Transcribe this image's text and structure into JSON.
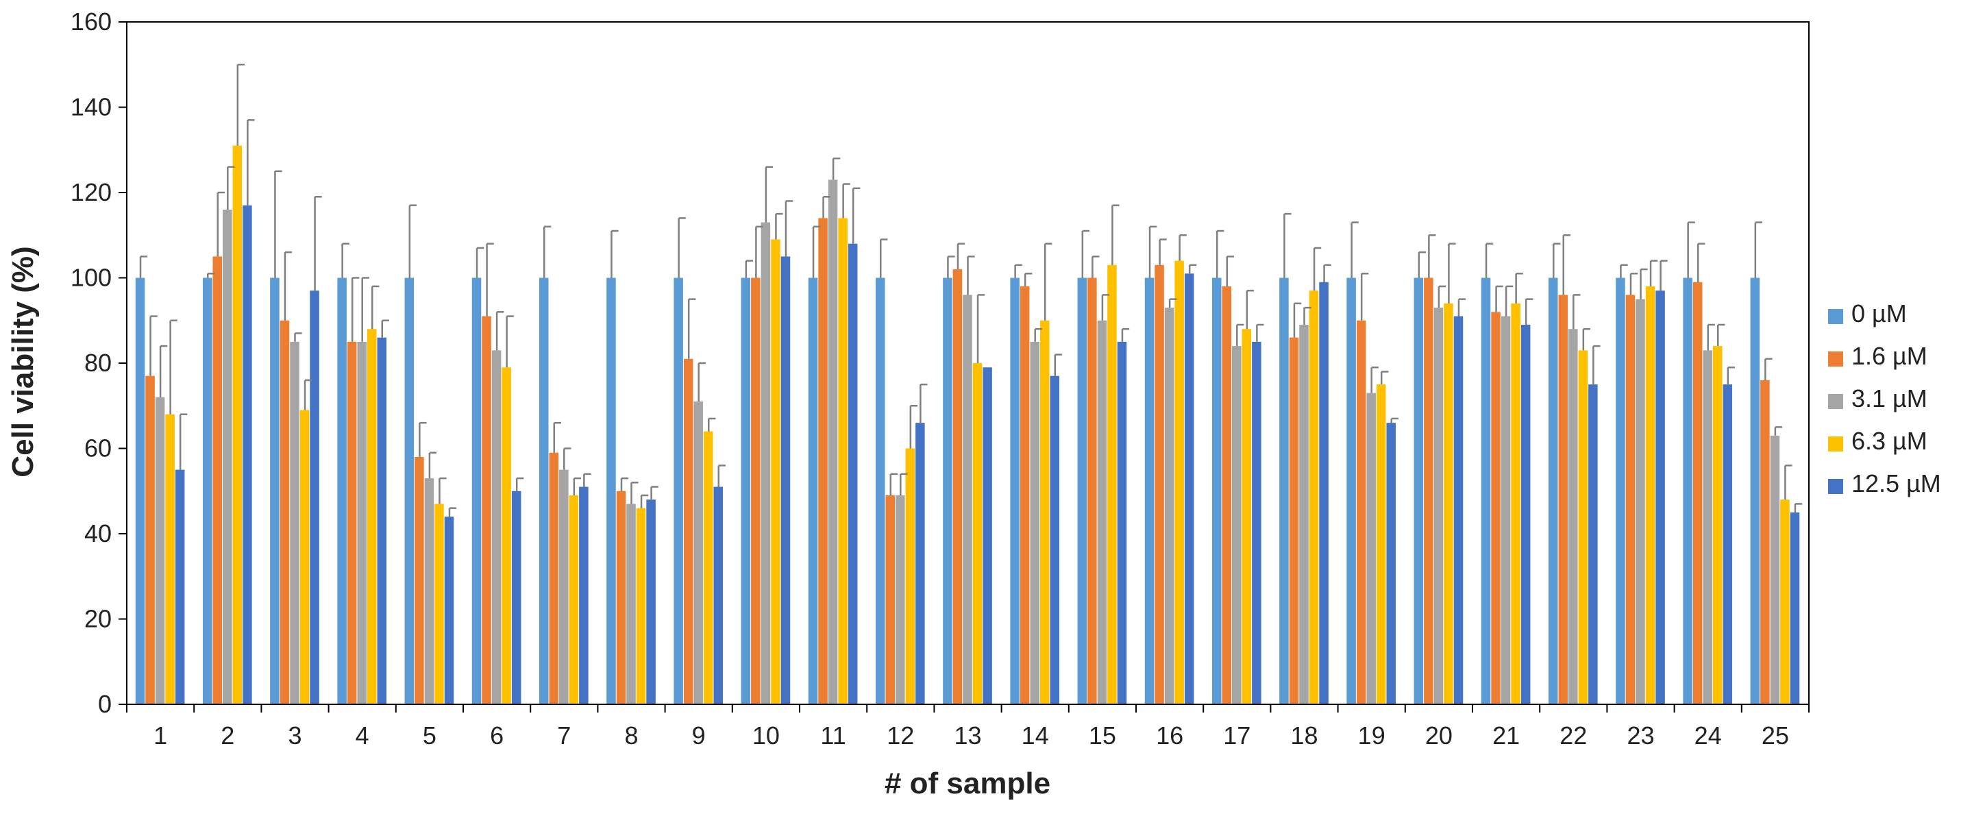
{
  "chart_data": {
    "type": "bar",
    "title": "",
    "xlabel": "# of sample",
    "ylabel": "Cell viability (%)",
    "ylim": [
      0,
      160
    ],
    "yticks": [
      0,
      20,
      40,
      60,
      80,
      100,
      120,
      140,
      160
    ],
    "categories": [
      "1",
      "2",
      "3",
      "4",
      "5",
      "6",
      "7",
      "8",
      "9",
      "10",
      "11",
      "12",
      "13",
      "14",
      "15",
      "16",
      "17",
      "18",
      "19",
      "20",
      "21",
      "22",
      "23",
      "24",
      "25"
    ],
    "legend_position": "right",
    "series": [
      {
        "name": "0 µM",
        "color": "#5B9BD5",
        "values": [
          100,
          100,
          100,
          100,
          100,
          100,
          100,
          100,
          100,
          100,
          100,
          100,
          100,
          100,
          100,
          100,
          100,
          100,
          100,
          100,
          100,
          100,
          100,
          100,
          100
        ],
        "errors": [
          5,
          1,
          25,
          8,
          17,
          7,
          12,
          11,
          14,
          4,
          12,
          9,
          5,
          3,
          11,
          12,
          11,
          15,
          13,
          6,
          8,
          8,
          3,
          13,
          13
        ]
      },
      {
        "name": "1.6 µM",
        "color": "#ED7D31",
        "values": [
          77,
          105,
          90,
          85,
          58,
          91,
          59,
          50,
          81,
          100,
          114,
          49,
          102,
          98,
          100,
          103,
          98,
          86,
          90,
          100,
          92,
          96,
          96,
          99,
          76
        ],
        "errors": [
          14,
          15,
          16,
          15,
          8,
          17,
          7,
          3,
          14,
          12,
          5,
          5,
          6,
          3,
          5,
          6,
          7,
          8,
          11,
          10,
          6,
          14,
          5,
          9,
          5
        ]
      },
      {
        "name": "3.1 µM",
        "color": "#A5A5A5",
        "values": [
          72,
          116,
          85,
          85,
          53,
          83,
          55,
          47,
          71,
          113,
          123,
          49,
          96,
          85,
          90,
          93,
          84,
          89,
          73,
          93,
          91,
          88,
          95,
          83,
          63
        ],
        "errors": [
          12,
          10,
          2,
          15,
          6,
          9,
          5,
          5,
          9,
          13,
          5,
          5,
          9,
          3,
          6,
          2,
          5,
          4,
          6,
          5,
          7,
          8,
          7,
          6,
          2
        ]
      },
      {
        "name": "6.3 µM",
        "color": "#FFC000",
        "values": [
          68,
          131,
          69,
          88,
          47,
          79,
          49,
          46,
          64,
          109,
          114,
          60,
          80,
          90,
          103,
          104,
          88,
          97,
          75,
          94,
          94,
          83,
          98,
          84,
          48
        ],
        "errors": [
          22,
          19,
          7,
          10,
          6,
          12,
          4,
          3,
          3,
          6,
          8,
          10,
          16,
          18,
          14,
          6,
          9,
          10,
          3,
          14,
          7,
          5,
          6,
          5,
          8
        ]
      },
      {
        "name": "12.5 µM",
        "color": "#4472C4",
        "values": [
          55,
          117,
          97,
          86,
          44,
          50,
          51,
          48,
          51,
          105,
          108,
          66,
          79,
          77,
          85,
          101,
          85,
          99,
          66,
          91,
          89,
          75,
          97,
          75,
          45
        ],
        "errors": [
          13,
          20,
          22,
          4,
          2,
          3,
          3,
          3,
          5,
          13,
          13,
          9,
          0,
          5,
          3,
          2,
          4,
          4,
          1,
          4,
          6,
          9,
          7,
          4,
          2
        ]
      }
    ]
  }
}
